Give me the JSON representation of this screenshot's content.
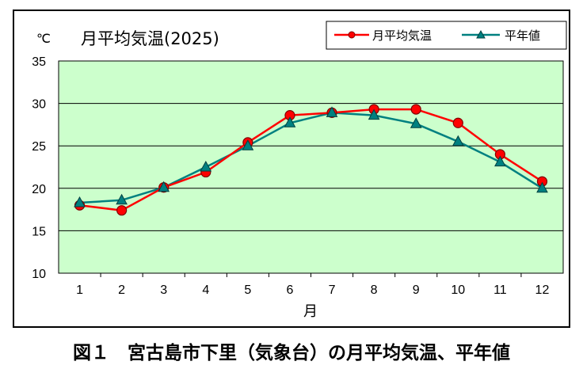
{
  "caption": "図１　宮古島市下里（気象台）の月平均気温、平年値",
  "chart_data": {
    "type": "line",
    "title": "月平均気温(2025)",
    "ylabel": "℃",
    "xlabel": "月",
    "categories": [
      "1",
      "2",
      "3",
      "4",
      "5",
      "6",
      "7",
      "8",
      "9",
      "10",
      "11",
      "12"
    ],
    "ylim": [
      10,
      35
    ],
    "yticks": [
      "10",
      "15",
      "20",
      "25",
      "30",
      "35"
    ],
    "grid": true,
    "legend_position": "top-right",
    "plot_bg": "#ccffcc",
    "series": [
      {
        "name": "月平均気温",
        "color": "#ff0000",
        "marker": "circle",
        "values": [
          18.0,
          17.4,
          20.1,
          21.9,
          25.4,
          28.6,
          28.9,
          29.3,
          29.3,
          27.7,
          24.0,
          20.8
        ]
      },
      {
        "name": "平年値",
        "color": "#008080",
        "marker": "triangle",
        "values": [
          18.3,
          18.6,
          20.1,
          22.5,
          25.0,
          27.7,
          28.9,
          28.6,
          27.6,
          25.5,
          23.1,
          20.0
        ]
      }
    ]
  }
}
